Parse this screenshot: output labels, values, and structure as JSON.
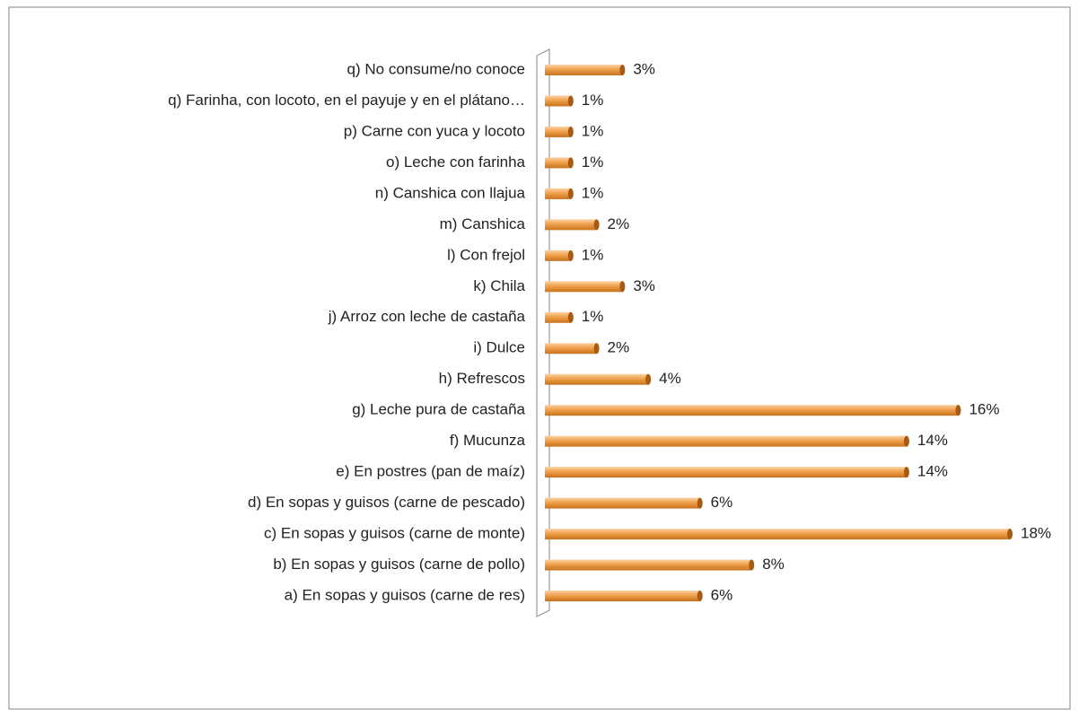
{
  "chart_data": {
    "type": "bar",
    "orientation": "horizontal",
    "color": "#f0a04b",
    "categories": [
      "a) En sopas  y guisos (carne de res)",
      "b) En sopas  y guisos (carne de pollo)",
      "c) En sopas  y guisos (carne de monte)",
      "d) En sopas  y guisos (carne de pescado)",
      "e) En postres (pan de maíz)",
      "f) Mucunza",
      "g) Leche pura de castaña",
      "h) Refrescos",
      "i) Dulce",
      "j) Arroz con leche de castaña",
      "k) Chila",
      "l) Con frejol",
      "m) Canshica",
      "n) Canshica con llajua",
      "o) Leche con farinha",
      "p) Carne con yuca y locoto",
      "q) Farinha, con locoto, en el payuje y en el plátano…",
      "q)  No consume/no conoce"
    ],
    "values": [
      6,
      8,
      18,
      6,
      14,
      14,
      16,
      4,
      2,
      1,
      3,
      1,
      2,
      1,
      1,
      1,
      1,
      3
    ],
    "value_labels": [
      "6%",
      "8%",
      "18%",
      "6%",
      "14%",
      "14%",
      "16%",
      "4%",
      "2%",
      "1%",
      "3%",
      "1%",
      "2%",
      "1%",
      "1%",
      "1%",
      "1%",
      "3%"
    ]
  }
}
